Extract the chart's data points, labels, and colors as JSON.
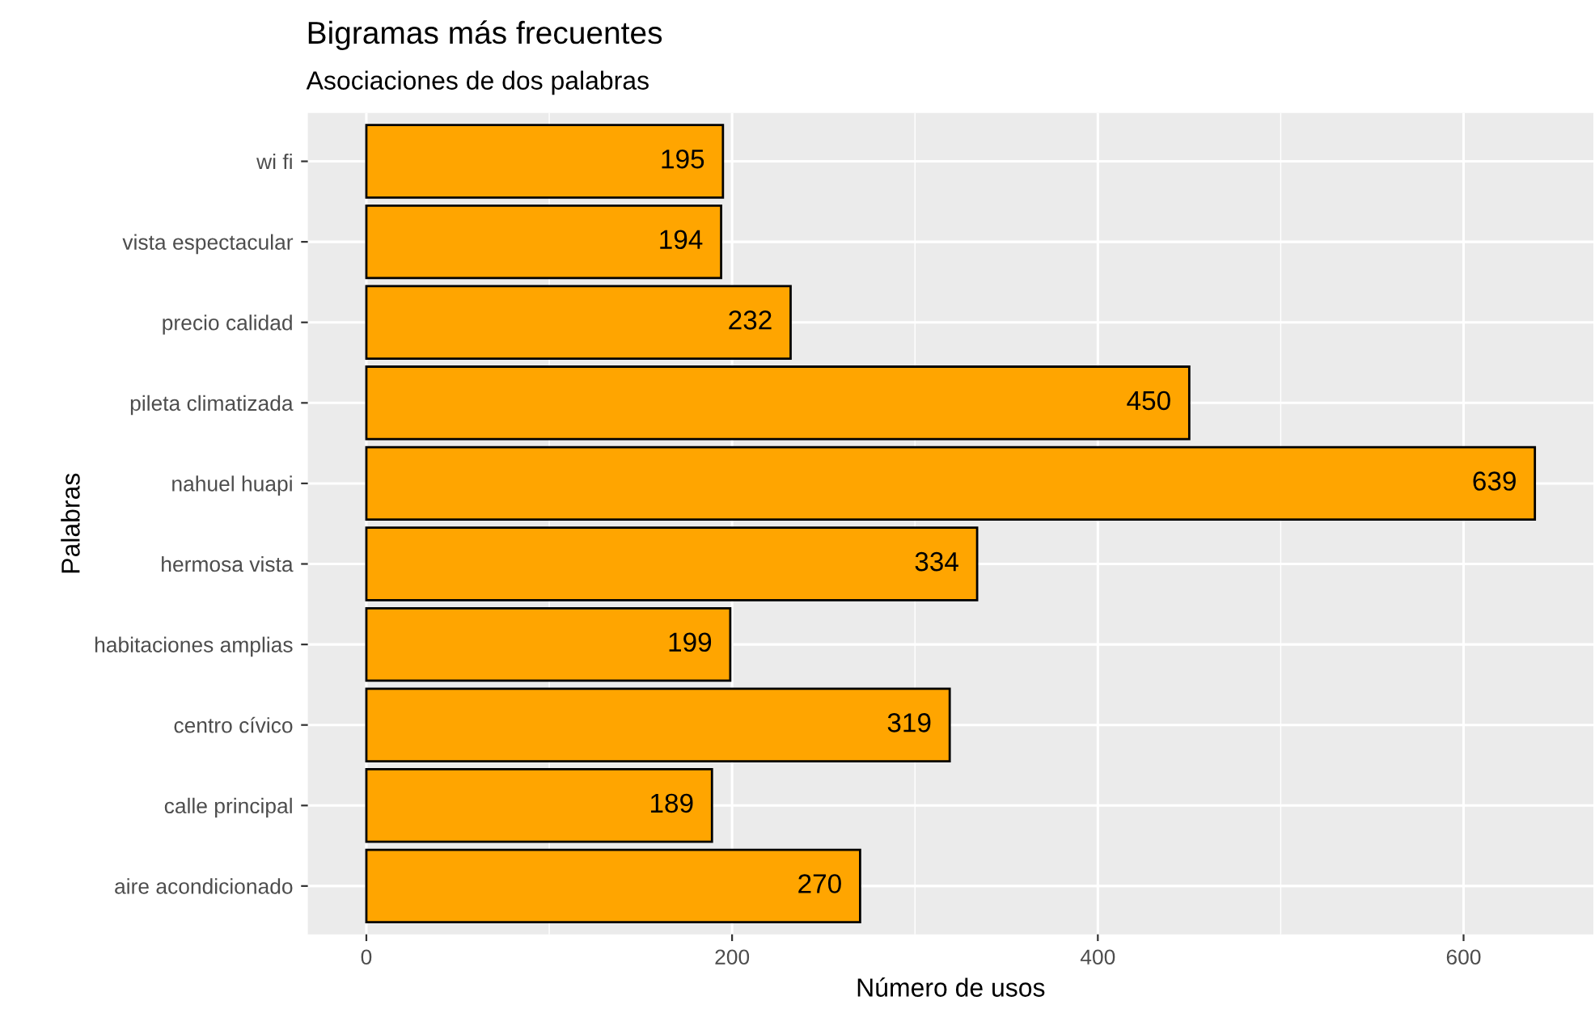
{
  "chart_data": {
    "type": "bar",
    "orientation": "horizontal",
    "title": "Bigramas más frecuentes",
    "subtitle": "Asociaciones de dos palabras",
    "xlabel": "Número de usos",
    "ylabel": "Palabras",
    "categories": [
      "wi fi",
      "vista espectacular",
      "precio calidad",
      "pileta climatizada",
      "nahuel huapi",
      "hermosa vista",
      "habitaciones amplias",
      "centro cívico",
      "calle principal",
      "aire acondicionado"
    ],
    "values": [
      195,
      194,
      232,
      450,
      639,
      334,
      199,
      319,
      189,
      270
    ],
    "color": "#ffa500",
    "data_labels": true,
    "xlim": [
      -32,
      671
    ],
    "xticks": [
      0,
      200,
      400,
      600
    ],
    "grid": true,
    "legend": false
  }
}
